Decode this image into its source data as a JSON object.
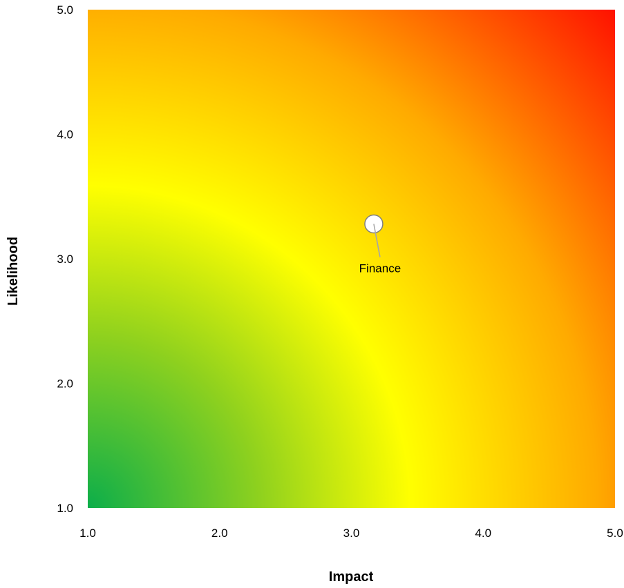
{
  "chart_data": {
    "type": "scatter",
    "title": "",
    "xlabel": "Impact",
    "ylabel": "Likelihood",
    "xlim": [
      1.0,
      5.0
    ],
    "ylim": [
      1.0,
      5.0
    ],
    "xticks": [
      "1.0",
      "2.0",
      "3.0",
      "4.0",
      "5.0"
    ],
    "yticks": [
      "1.0",
      "2.0",
      "3.0",
      "4.0",
      "5.0"
    ],
    "grid": false,
    "background": "green-yellow-red radial risk gradient (low risk bottom-left, high risk top-right)",
    "gradient_colors": {
      "low": "#0cae4a",
      "mid_low": "#8fd11e",
      "mid": "#ffff00",
      "mid_high": "#ffaa00",
      "high": "#ff0000"
    },
    "points": [
      {
        "label": "Finance",
        "x": 3.17,
        "y": 3.28
      }
    ],
    "marker": {
      "fill": "#ffffff",
      "stroke": "#7f7f7f",
      "leader_color": "#a6a6a6"
    }
  }
}
